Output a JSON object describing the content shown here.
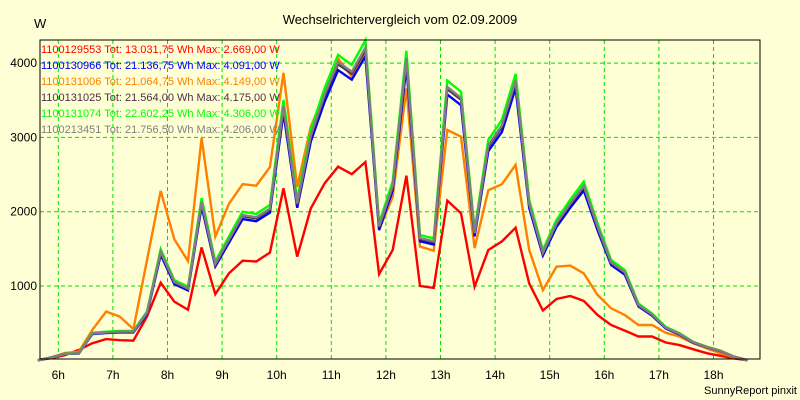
{
  "chart_data": {
    "type": "line",
    "title": "Wechselrichtervergleich vom 02.09.2009",
    "ylabel": "W",
    "xlabel": "",
    "footer": "SunnyReport pinxit",
    "ylim": [
      0,
      4330
    ],
    "xlim": [
      5.72,
      18.9
    ],
    "grid": true,
    "legend_placement": "top-left",
    "x_tick_values": [
      6,
      7,
      8,
      9,
      10,
      11,
      12,
      13,
      14,
      15,
      16,
      17,
      18
    ],
    "x_tick_labels": [
      "6h",
      "7h",
      "8h",
      "9h",
      "10h",
      "11h",
      "12h",
      "13h",
      "14h",
      "15h",
      "16h",
      "17h",
      "18h"
    ],
    "y_tick_values": [
      1000,
      2000,
      3000,
      4000
    ],
    "y_tick_labels": [
      "1000",
      "2000",
      "3000",
      "4000"
    ],
    "x_start": 5.625,
    "x_step": 0.25,
    "series": [
      {
        "name": "1100129553",
        "legend": "1100129553 Tot: 13.031,75 Wh Max: 2.669,00 W",
        "color": "#ff0000",
        "values": [
          0,
          30,
          70,
          140,
          230,
          285,
          270,
          265,
          590,
          1045,
          790,
          680,
          1520,
          890,
          1170,
          1340,
          1330,
          1450,
          2315,
          1395,
          2045,
          2380,
          2605,
          2505,
          2669,
          1160,
          1485,
          2485,
          1000,
          975,
          2150,
          1980,
          990,
          1485,
          1600,
          1785,
          1035,
          670,
          825,
          865,
          800,
          610,
          475,
          400,
          320,
          320,
          240,
          205,
          150,
          95,
          60,
          25,
          0
        ]
      },
      {
        "name": "1100131006",
        "legend": "1100131006 Tot: 21.064,75 Wh Max: 4.149,00 W",
        "color": "#ff8000",
        "values": [
          0,
          40,
          100,
          115,
          410,
          655,
          590,
          420,
          1350,
          2280,
          1630,
          1335,
          2990,
          1665,
          2105,
          2370,
          2350,
          2600,
          3870,
          2335,
          3145,
          3595,
          4065,
          3815,
          4149,
          1755,
          2200,
          3660,
          1530,
          1475,
          3100,
          3010,
          1510,
          2290,
          2370,
          2630,
          1485,
          945,
          1260,
          1275,
          1170,
          880,
          700,
          610,
          475,
          475,
          370,
          320,
          230,
          160,
          95,
          40,
          0
        ]
      },
      {
        "name": "1100131074",
        "legend": "1100131074 Tot: 22.602,25 Wh Max: 4.306,00 W",
        "color": "#00ff00",
        "values": [
          0,
          40,
          90,
          95,
          370,
          385,
          395,
          395,
          655,
          1495,
          1080,
          990,
          2180,
          1330,
          1665,
          2000,
          1970,
          2090,
          3505,
          2160,
          3100,
          3660,
          4110,
          3975,
          4306,
          1845,
          2405,
          4165,
          1685,
          1640,
          3765,
          3615,
          1755,
          2965,
          3235,
          3855,
          2160,
          1485,
          1890,
          2160,
          2405,
          1845,
          1350,
          1215,
          765,
          630,
          450,
          365,
          250,
          185,
          130,
          50,
          0
        ]
      },
      {
        "name": "1100130966",
        "legend": "1100130966 Tot: 21.136,75 Wh Max: 4.091,00 W",
        "color": "#0000ff",
        "values": [
          0,
          38,
          86,
          90,
          352,
          366,
          375,
          375,
          622,
          1420,
          1026,
          941,
          2071,
          1264,
          1582,
          1900,
          1872,
          1986,
          3330,
          2052,
          2945,
          3477,
          3905,
          3776,
          4091,
          1753,
          2285,
          3957,
          1601,
          1558,
          3577,
          3434,
          1667,
          2817,
          3073,
          3662,
          2052,
          1411,
          1796,
          2052,
          2285,
          1753,
          1283,
          1154,
          727,
          599,
          428,
          347,
          238,
          176,
          124,
          48,
          0
        ]
      },
      {
        "name": "1100131025",
        "legend": "1100131025 Tot: 21.564,00 Wh Max: 4.175,00 W",
        "color": "#4a3048",
        "values": [
          0,
          39,
          87,
          92,
          359,
          373,
          383,
          383,
          635,
          1450,
          1048,
          960,
          2115,
          1290,
          1615,
          1940,
          1911,
          2027,
          3400,
          2095,
          3007,
          3550,
          3987,
          3856,
          4175,
          1790,
          2333,
          4040,
          1634,
          1591,
          3652,
          3507,
          1702,
          2876,
          3138,
          3739,
          2095,
          1440,
          1833,
          2095,
          2333,
          1790,
          1310,
          1179,
          742,
          611,
          437,
          354,
          243,
          179,
          126,
          49,
          0
        ]
      },
      {
        "name": "1100213451",
        "legend": "1100213451 Tot: 21.756,50 Wh Max: 4.206,00 W",
        "color": "#808080",
        "values": [
          0,
          39,
          88,
          93,
          361,
          376,
          386,
          386,
          640,
          1461,
          1055,
          967,
          2130,
          1299,
          1627,
          1954,
          1925,
          2042,
          3424,
          2110,
          3029,
          3576,
          4015,
          3884,
          4206,
          1803,
          2350,
          4069,
          1646,
          1602,
          3678,
          3532,
          1715,
          2897,
          3161,
          3766,
          2110,
          1451,
          1847,
          2110,
          2350,
          1803,
          1319,
          1187,
          747,
          616,
          440,
          357,
          244,
          181,
          127,
          49,
          0
        ]
      }
    ],
    "legend_order": [
      0,
      3,
      1,
      4,
      2,
      5
    ]
  },
  "colors": {
    "background": "#ffffd5",
    "grid": "#00e000",
    "axis": "#000000"
  }
}
